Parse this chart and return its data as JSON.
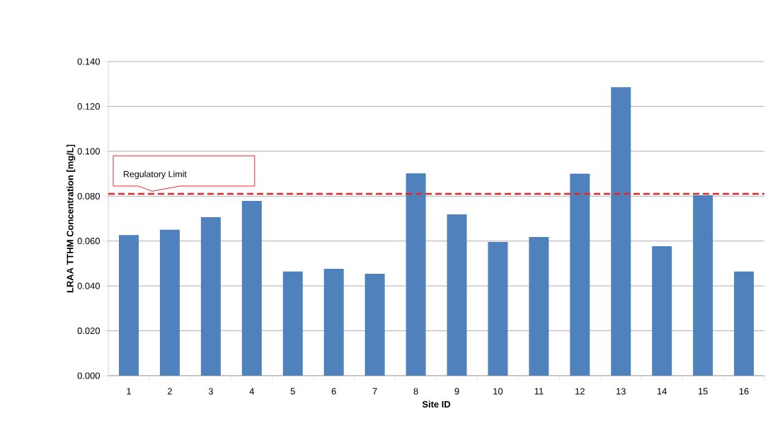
{
  "chart_data": {
    "type": "bar",
    "xlabel": "Site ID",
    "ylabel": "LRAA TTHM Concentration [mg/L]",
    "categories": [
      "1",
      "2",
      "3",
      "4",
      "5",
      "6",
      "7",
      "8",
      "9",
      "10",
      "11",
      "12",
      "13",
      "14",
      "15",
      "16"
    ],
    "values": [
      0.0627,
      0.065,
      0.0706,
      0.0779,
      0.0464,
      0.0476,
      0.0454,
      0.0902,
      0.0719,
      0.0596,
      0.0618,
      0.09,
      0.1286,
      0.0577,
      0.0804,
      0.0464
    ],
    "color": "#4f81bd",
    "ylim": [
      0,
      0.14
    ],
    "yticks": [
      {
        "value": 0,
        "label": "0.000"
      },
      {
        "value": 0.02,
        "label": "0.020"
      },
      {
        "value": 0.04,
        "label": "0.040"
      },
      {
        "value": 0.06,
        "label": "0.060"
      },
      {
        "value": 0.08,
        "label": "0.080"
      },
      {
        "value": 0.1,
        "label": "0.100"
      },
      {
        "value": 0.12,
        "label": "0.120"
      },
      {
        "value": 0.14,
        "label": "0.140"
      }
    ],
    "grid": "y",
    "ref_lines": [
      {
        "axis": "y",
        "value": 0.081,
        "label": "Regulatory Limit",
        "color": "#e8262a",
        "line_style": "dashed"
      }
    ]
  }
}
